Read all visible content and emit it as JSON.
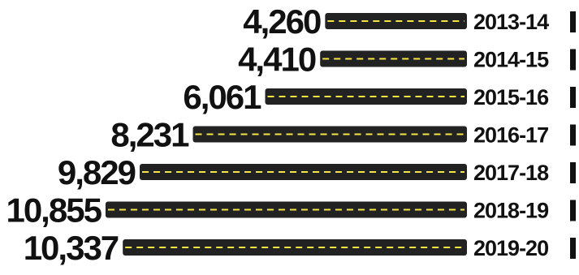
{
  "chart_data": {
    "type": "bar",
    "orientation": "horizontal",
    "categories": [
      "2013-14",
      "2014-15",
      "2015-16",
      "2016-17",
      "2017-18",
      "2018-19",
      "2019-20"
    ],
    "values": [
      4260,
      4410,
      6061,
      8231,
      9829,
      10855,
      10337
    ],
    "value_labels": [
      "4,260",
      "4,410",
      "6,061",
      "8,231",
      "9,829",
      "10,855",
      "10,337"
    ],
    "bar_color": "#222222",
    "dash_color": "#f5e642",
    "end_marker_color": "#111111",
    "title": "",
    "xlabel": "",
    "ylabel": ""
  }
}
